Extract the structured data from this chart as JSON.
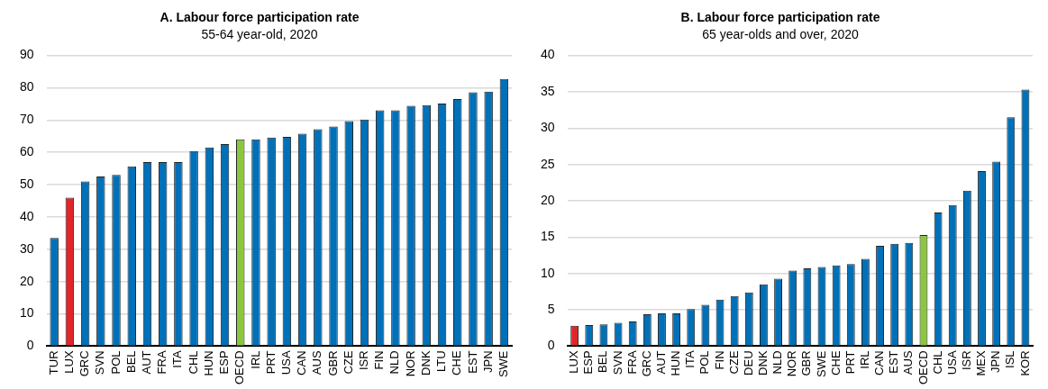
{
  "chart_data": [
    {
      "type": "bar",
      "title": "A. Labour force participation rate",
      "subtitle": "55-64 year-old, 2020",
      "categories": [
        "TUR",
        "LUX",
        "GRC",
        "SVN",
        "POL",
        "BEL",
        "AUT",
        "FRA",
        "ITA",
        "CHL",
        "HUN",
        "ESP",
        "OECD",
        "IRL",
        "PRT",
        "USA",
        "CAN",
        "AUS",
        "GBR",
        "CZE",
        "ISR",
        "FIN",
        "NLD",
        "NOR",
        "DNK",
        "LTU",
        "CHE",
        "EST",
        "JPN",
        "SWE"
      ],
      "values": [
        33.5,
        46,
        51,
        52.5,
        53,
        55.7,
        57,
        57,
        57,
        60.4,
        61.5,
        62.6,
        64,
        64,
        64.6,
        64.8,
        65.8,
        67.2,
        68,
        69.7,
        70.2,
        73,
        73,
        74.4,
        74.6,
        75.1,
        76.5,
        78.6,
        78.8,
        82.7
      ],
      "colors": [
        "#0070b8",
        "#e0262a",
        "#0070b8",
        "#0070b8",
        "#0070b8",
        "#0070b8",
        "#0070b8",
        "#0070b8",
        "#0070b8",
        "#0070b8",
        "#0070b8",
        "#0070b8",
        "#8cc63f",
        "#0070b8",
        "#0070b8",
        "#0070b8",
        "#0070b8",
        "#0070b8",
        "#0070b8",
        "#0070b8",
        "#0070b8",
        "#0070b8",
        "#0070b8",
        "#0070b8",
        "#0070b8",
        "#0070b8",
        "#0070b8",
        "#0070b8",
        "#0070b8",
        "#0070b8"
      ],
      "ylim": [
        0,
        90
      ],
      "yticks": [
        0,
        10,
        20,
        30,
        40,
        50,
        60,
        70,
        80,
        90
      ],
      "grid": "y"
    },
    {
      "type": "bar",
      "title": "B. Labour force participation rate",
      "subtitle": "65 year-olds and over, 2020",
      "categories": [
        "LUX",
        "ESP",
        "BEL",
        "SVN",
        "FRA",
        "GRC",
        "AUT",
        "HUN",
        "ITA",
        "POL",
        "FIN",
        "CZE",
        "DEU",
        "DNK",
        "NLD",
        "NOR",
        "GBR",
        "SWE",
        "CHE",
        "PRT",
        "IRL",
        "CAN",
        "EST",
        "AUS",
        "OECD",
        "CHL",
        "USA",
        "ISR",
        "MEX",
        "JPN",
        "ISL",
        "KOR"
      ],
      "values": [
        2.8,
        2.9,
        3.0,
        3.2,
        3.4,
        4.4,
        4.5,
        4.5,
        5.1,
        5.7,
        6.4,
        6.9,
        7.4,
        8.5,
        9.3,
        10.4,
        10.7,
        10.9,
        11.1,
        11.3,
        12.0,
        13.8,
        14.1,
        14.2,
        15.3,
        18.4,
        19.4,
        21.4,
        24.1,
        25.4,
        31.5,
        35.3
      ],
      "colors": [
        "#e0262a",
        "#0070b8",
        "#0070b8",
        "#0070b8",
        "#0070b8",
        "#0070b8",
        "#0070b8",
        "#0070b8",
        "#0070b8",
        "#0070b8",
        "#0070b8",
        "#0070b8",
        "#0070b8",
        "#0070b8",
        "#0070b8",
        "#0070b8",
        "#0070b8",
        "#0070b8",
        "#0070b8",
        "#0070b8",
        "#0070b8",
        "#0070b8",
        "#0070b8",
        "#0070b8",
        "#8cc63f",
        "#0070b8",
        "#0070b8",
        "#0070b8",
        "#0070b8",
        "#0070b8",
        "#0070b8",
        "#0070b8"
      ],
      "ylim": [
        0,
        40
      ],
      "yticks": [
        0,
        5,
        10,
        15,
        20,
        25,
        30,
        35,
        40
      ],
      "grid": "y"
    }
  ]
}
